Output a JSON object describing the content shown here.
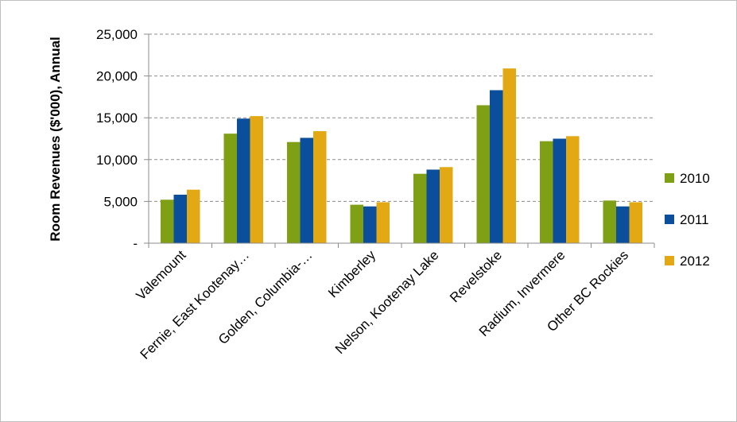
{
  "chart_data": {
    "type": "bar",
    "title": "",
    "xlabel": "",
    "ylabel": "Room Revenues ($'000), Annual",
    "ylim": [
      0,
      25000
    ],
    "yticks": [
      0,
      5000,
      10000,
      15000,
      20000,
      25000
    ],
    "ytick_labels": [
      "-",
      "5,000",
      "10,000",
      "15,000",
      "20,000",
      "25,000"
    ],
    "grid": true,
    "legend_position": "right",
    "categories": [
      "Valemount",
      "Fernie, East Kootenay…",
      "Golden, Columbia-…",
      "Kimberley",
      "Nelson, Kootenay Lake",
      "Revelstoke",
      "Radium, Invermere",
      "Other BC Rockies"
    ],
    "series": [
      {
        "name": "2010",
        "color": "#7f9f14",
        "values": [
          5200,
          13100,
          12100,
          4600,
          8300,
          16500,
          12200,
          5100
        ]
      },
      {
        "name": "2011",
        "color": "#0b4f9c",
        "values": [
          5800,
          14900,
          12600,
          4400,
          8800,
          18300,
          12500,
          4400
        ]
      },
      {
        "name": "2012",
        "color": "#e3a915",
        "values": [
          6400,
          15200,
          13400,
          4900,
          9100,
          20900,
          12800,
          4900
        ]
      }
    ]
  }
}
